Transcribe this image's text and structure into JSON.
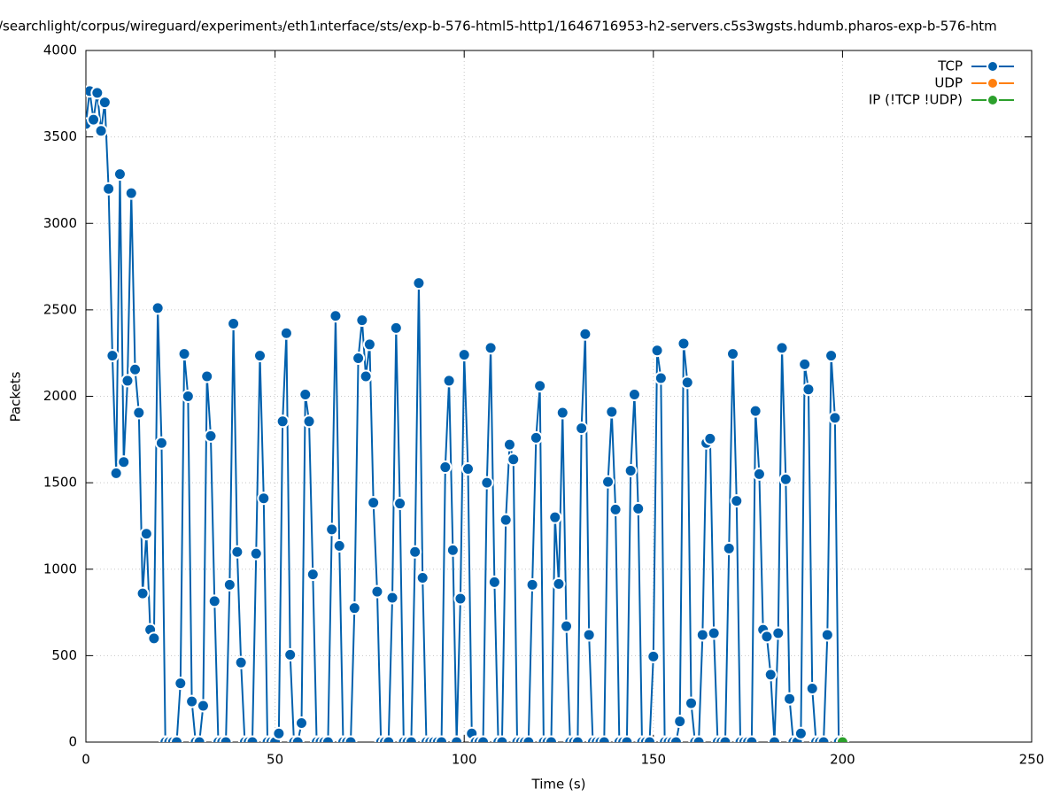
{
  "chart_data": {
    "type": "line",
    "title": "/searchlight/corpus/wireguard/experiment₃/eth1ᵢnterface/sts/exp-b-576-html5-http1/1646716953-h2-servers.c5s3wgsts.hdumb.pharos-exp-b-576-htm",
    "x_label": "Time (s)",
    "y_label": "Packets",
    "xlim": [
      0,
      250
    ],
    "xticks": [
      0,
      50,
      100,
      150,
      200,
      250
    ],
    "ylim": [
      0,
      4000
    ],
    "yticks": [
      0,
      500,
      1000,
      1500,
      2000,
      2500,
      3000,
      3500,
      4000
    ],
    "grid": true,
    "legend": "top-right",
    "series": [
      {
        "name": "TCP",
        "color": "#0060ad",
        "x": [
          0,
          1,
          2,
          3,
          4,
          5,
          6,
          7,
          8,
          9,
          10,
          11,
          12,
          13,
          14,
          15,
          16,
          17,
          18,
          19,
          20,
          21,
          22,
          23,
          24,
          25,
          26,
          27,
          28,
          29,
          30,
          31,
          32,
          33,
          34,
          35,
          36,
          37,
          38,
          39,
          40,
          41,
          42,
          43,
          44,
          45,
          46,
          47,
          48,
          49,
          50,
          51,
          52,
          53,
          54,
          55,
          56,
          57,
          58,
          59,
          60,
          61,
          62,
          63,
          64,
          65,
          66,
          67,
          68,
          69,
          70,
          71,
          72,
          73,
          74,
          75,
          76,
          77,
          78,
          79,
          80,
          81,
          82,
          83,
          84,
          85,
          86,
          87,
          88,
          89,
          90,
          91,
          92,
          93,
          94,
          95,
          96,
          97,
          98,
          99,
          100,
          101,
          102,
          103,
          104,
          105,
          106,
          107,
          108,
          109,
          110,
          111,
          112,
          113,
          114,
          115,
          116,
          117,
          118,
          119,
          120,
          121,
          122,
          123,
          124,
          125,
          126,
          127,
          128,
          129,
          130,
          131,
          132,
          133,
          134,
          135,
          136,
          137,
          138,
          139,
          140,
          141,
          142,
          143,
          144,
          145,
          146,
          147,
          148,
          149,
          150,
          151,
          152,
          153,
          154,
          155,
          156,
          157,
          158,
          159,
          160,
          161,
          162,
          163,
          164,
          165,
          166,
          167,
          168,
          169,
          170,
          171,
          172,
          173,
          174,
          175,
          176,
          177,
          178,
          179,
          180,
          181,
          182,
          183,
          184,
          185,
          186,
          187,
          188,
          189,
          190,
          191,
          192,
          193,
          194,
          195,
          196,
          197,
          198,
          199
        ],
        "values": [
          3575,
          3765,
          3600,
          3755,
          3535,
          3700,
          3200,
          2235,
          1555,
          3285,
          1620,
          2090,
          3175,
          2155,
          1905,
          860,
          1205,
          650,
          600,
          2510,
          1730,
          0,
          0,
          0,
          0,
          340,
          2245,
          2000,
          235,
          0,
          0,
          210,
          2115,
          1770,
          815,
          0,
          0,
          0,
          910,
          2420,
          1100,
          460,
          0,
          0,
          0,
          1090,
          2235,
          1410,
          0,
          0,
          0,
          50,
          1855,
          2365,
          505,
          0,
          0,
          110,
          2010,
          1855,
          970,
          0,
          0,
          0,
          0,
          1230,
          2465,
          1135,
          0,
          0,
          0,
          775,
          2220,
          2440,
          2115,
          2300,
          1385,
          870,
          0,
          0,
          0,
          835,
          2395,
          1380,
          0,
          0,
          0,
          1100,
          2655,
          950,
          0,
          0,
          0,
          0,
          0,
          1590,
          2090,
          1110,
          0,
          830,
          2240,
          1580,
          50,
          0,
          0,
          0,
          1500,
          2280,
          925,
          0,
          0,
          1285,
          1720,
          1635,
          0,
          0,
          0,
          0,
          910,
          1760,
          2060,
          0,
          0,
          0,
          1300,
          915,
          1905,
          670,
          0,
          0,
          0,
          1815,
          2360,
          620,
          0,
          0,
          0,
          0,
          1505,
          1910,
          1345,
          0,
          0,
          0,
          1570,
          2010,
          1350,
          0,
          0,
          0,
          495,
          2265,
          2105,
          0,
          0,
          0,
          0,
          120,
          2305,
          2080,
          225,
          0,
          0,
          620,
          1730,
          1755,
          630,
          0,
          0,
          0,
          1120,
          2245,
          1395,
          0,
          0,
          0,
          0,
          1915,
          1550,
          650,
          610,
          390,
          0,
          630,
          2280,
          1520,
          250,
          0,
          0,
          50,
          2185,
          2040,
          310,
          0,
          0,
          0,
          620,
          2235,
          1875,
          0
        ]
      },
      {
        "name": "UDP",
        "color": "#ff7f0e",
        "x": [
          200
        ],
        "values": [
          0
        ]
      },
      {
        "name": "IP (!TCP  !UDP)",
        "color": "#2ca02c",
        "x": [
          200
        ],
        "values": [
          0
        ]
      }
    ]
  }
}
